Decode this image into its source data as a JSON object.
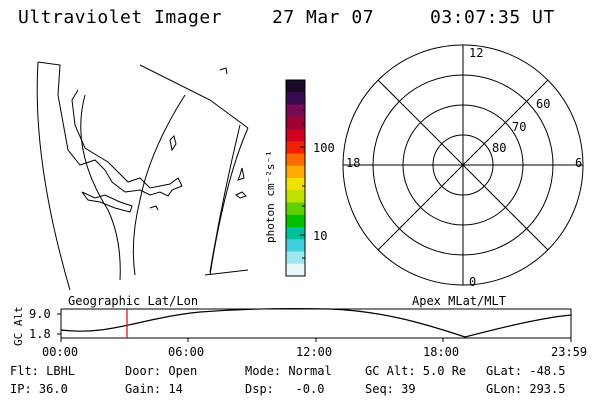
{
  "header": {
    "title": "Ultraviolet Imager",
    "date": "27 Mar 07",
    "time": "03:07:35 UT"
  },
  "colorbar": {
    "label": "photon cm⁻²s⁻¹",
    "ticks": [
      "100",
      "10"
    ],
    "colors": [
      "#1a0a2a",
      "#3a0a50",
      "#7a0a55",
      "#a00030",
      "#d00020",
      "#f02000",
      "#ff6a00",
      "#ffaa00",
      "#f0e000",
      "#c0e000",
      "#60d000",
      "#00c000",
      "#00c0a0",
      "#40d0e0",
      "#a0e8f0",
      "#e8f6f8"
    ]
  },
  "left_panel": {
    "label": "Geographic Lat/Lon"
  },
  "polar": {
    "label": "Apex MLat/MLT",
    "mlt_labels": {
      "top": "12",
      "right": "6",
      "bottom": "0",
      "left": "18"
    },
    "lat_labels": [
      "60",
      "70",
      "80"
    ]
  },
  "altplot": {
    "ylabel": "GC Alt",
    "yticks": [
      "9.0",
      "1.8"
    ],
    "xticks": [
      "00:00",
      "06:00",
      "12:00",
      "18:00",
      "23:59"
    ],
    "marker_time": "03:07"
  },
  "footer": {
    "row1": [
      "Flt: LBHL",
      "Door: Open",
      "Mode: Normal",
      "GC Alt: 5.0 Re",
      "GLat: -48.5"
    ],
    "row2": [
      "IP: 36.0",
      "Gain: 14",
      "Dsp:   -0.0",
      "Seq: 39",
      "GLon: 293.5"
    ]
  }
}
